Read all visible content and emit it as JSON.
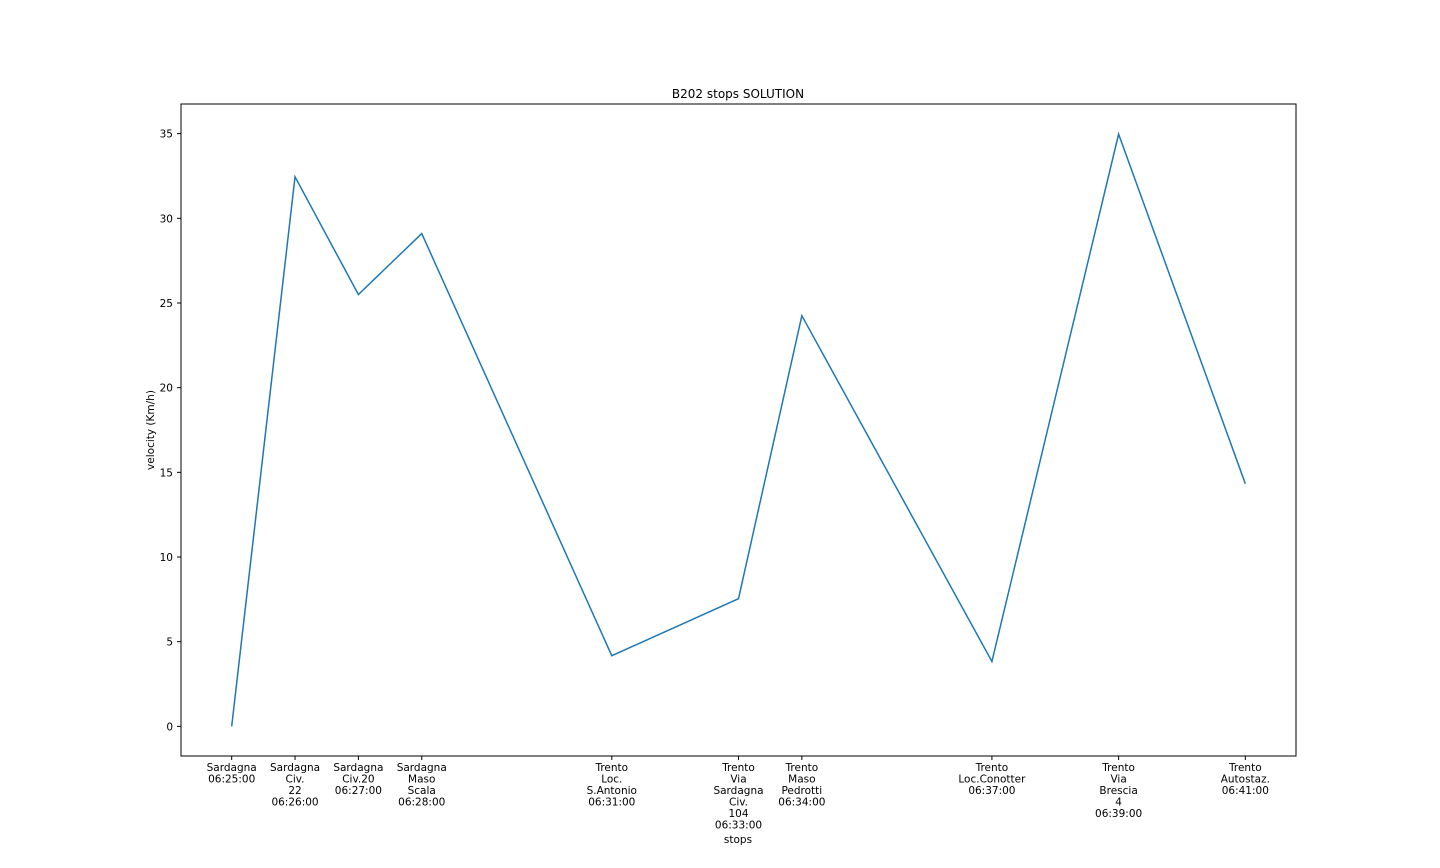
{
  "chart_data": {
    "type": "line",
    "title": "B202 stops SOLUTION",
    "x_label": "stops",
    "y_label": "velocity (Km/h)",
    "x": [
      "06:25:00",
      "06:26:00",
      "06:27:00",
      "06:28:00",
      "06:31:00",
      "06:33:00",
      "06:34:00",
      "06:37:00",
      "06:39:00",
      "06:41:00"
    ],
    "series": [
      {
        "name": "velocity",
        "color": "#1f77b4",
        "values": [
          0,
          32.45,
          25.5,
          29.1,
          4.17,
          7.54,
          24.25,
          3.83,
          34.97,
          14.33
        ]
      }
    ],
    "xlim": [
      "06:24:12",
      "06:41:48"
    ],
    "xticks": [
      {
        "value": "06:25:00",
        "label": "Sardagna\n06:25:00"
      },
      {
        "value": "06:26:00",
        "label": "Sardagna\nCiv.\n22\n06:26:00"
      },
      {
        "value": "06:27:00",
        "label": "Sardagna\nCiv.20\n06:27:00"
      },
      {
        "value": "06:28:00",
        "label": "Sardagna\nMaso\nScala\n06:28:00"
      },
      {
        "value": "06:31:00",
        "label": "Trento\nLoc.\nS.Antonio\n06:31:00"
      },
      {
        "value": "06:33:00",
        "label": "Trento\nVia\nSardagna\nCiv.\n104\n06:33:00"
      },
      {
        "value": "06:34:00",
        "label": "Trento\nMaso\nPedrotti\n06:34:00"
      },
      {
        "value": "06:37:00",
        "label": "Trento\nLoc.Conotter\n06:37:00"
      },
      {
        "value": "06:39:00",
        "label": "Trento\nVia\nBrescia\n4\n06:39:00"
      },
      {
        "value": "06:41:00",
        "label": "Trento\nAutostaz.\n06:41:00"
      }
    ],
    "ylim": [
      -1.75,
      36.75
    ],
    "yticks": [
      0,
      5,
      10,
      15,
      20,
      25,
      30,
      35
    ],
    "grid": false
  }
}
